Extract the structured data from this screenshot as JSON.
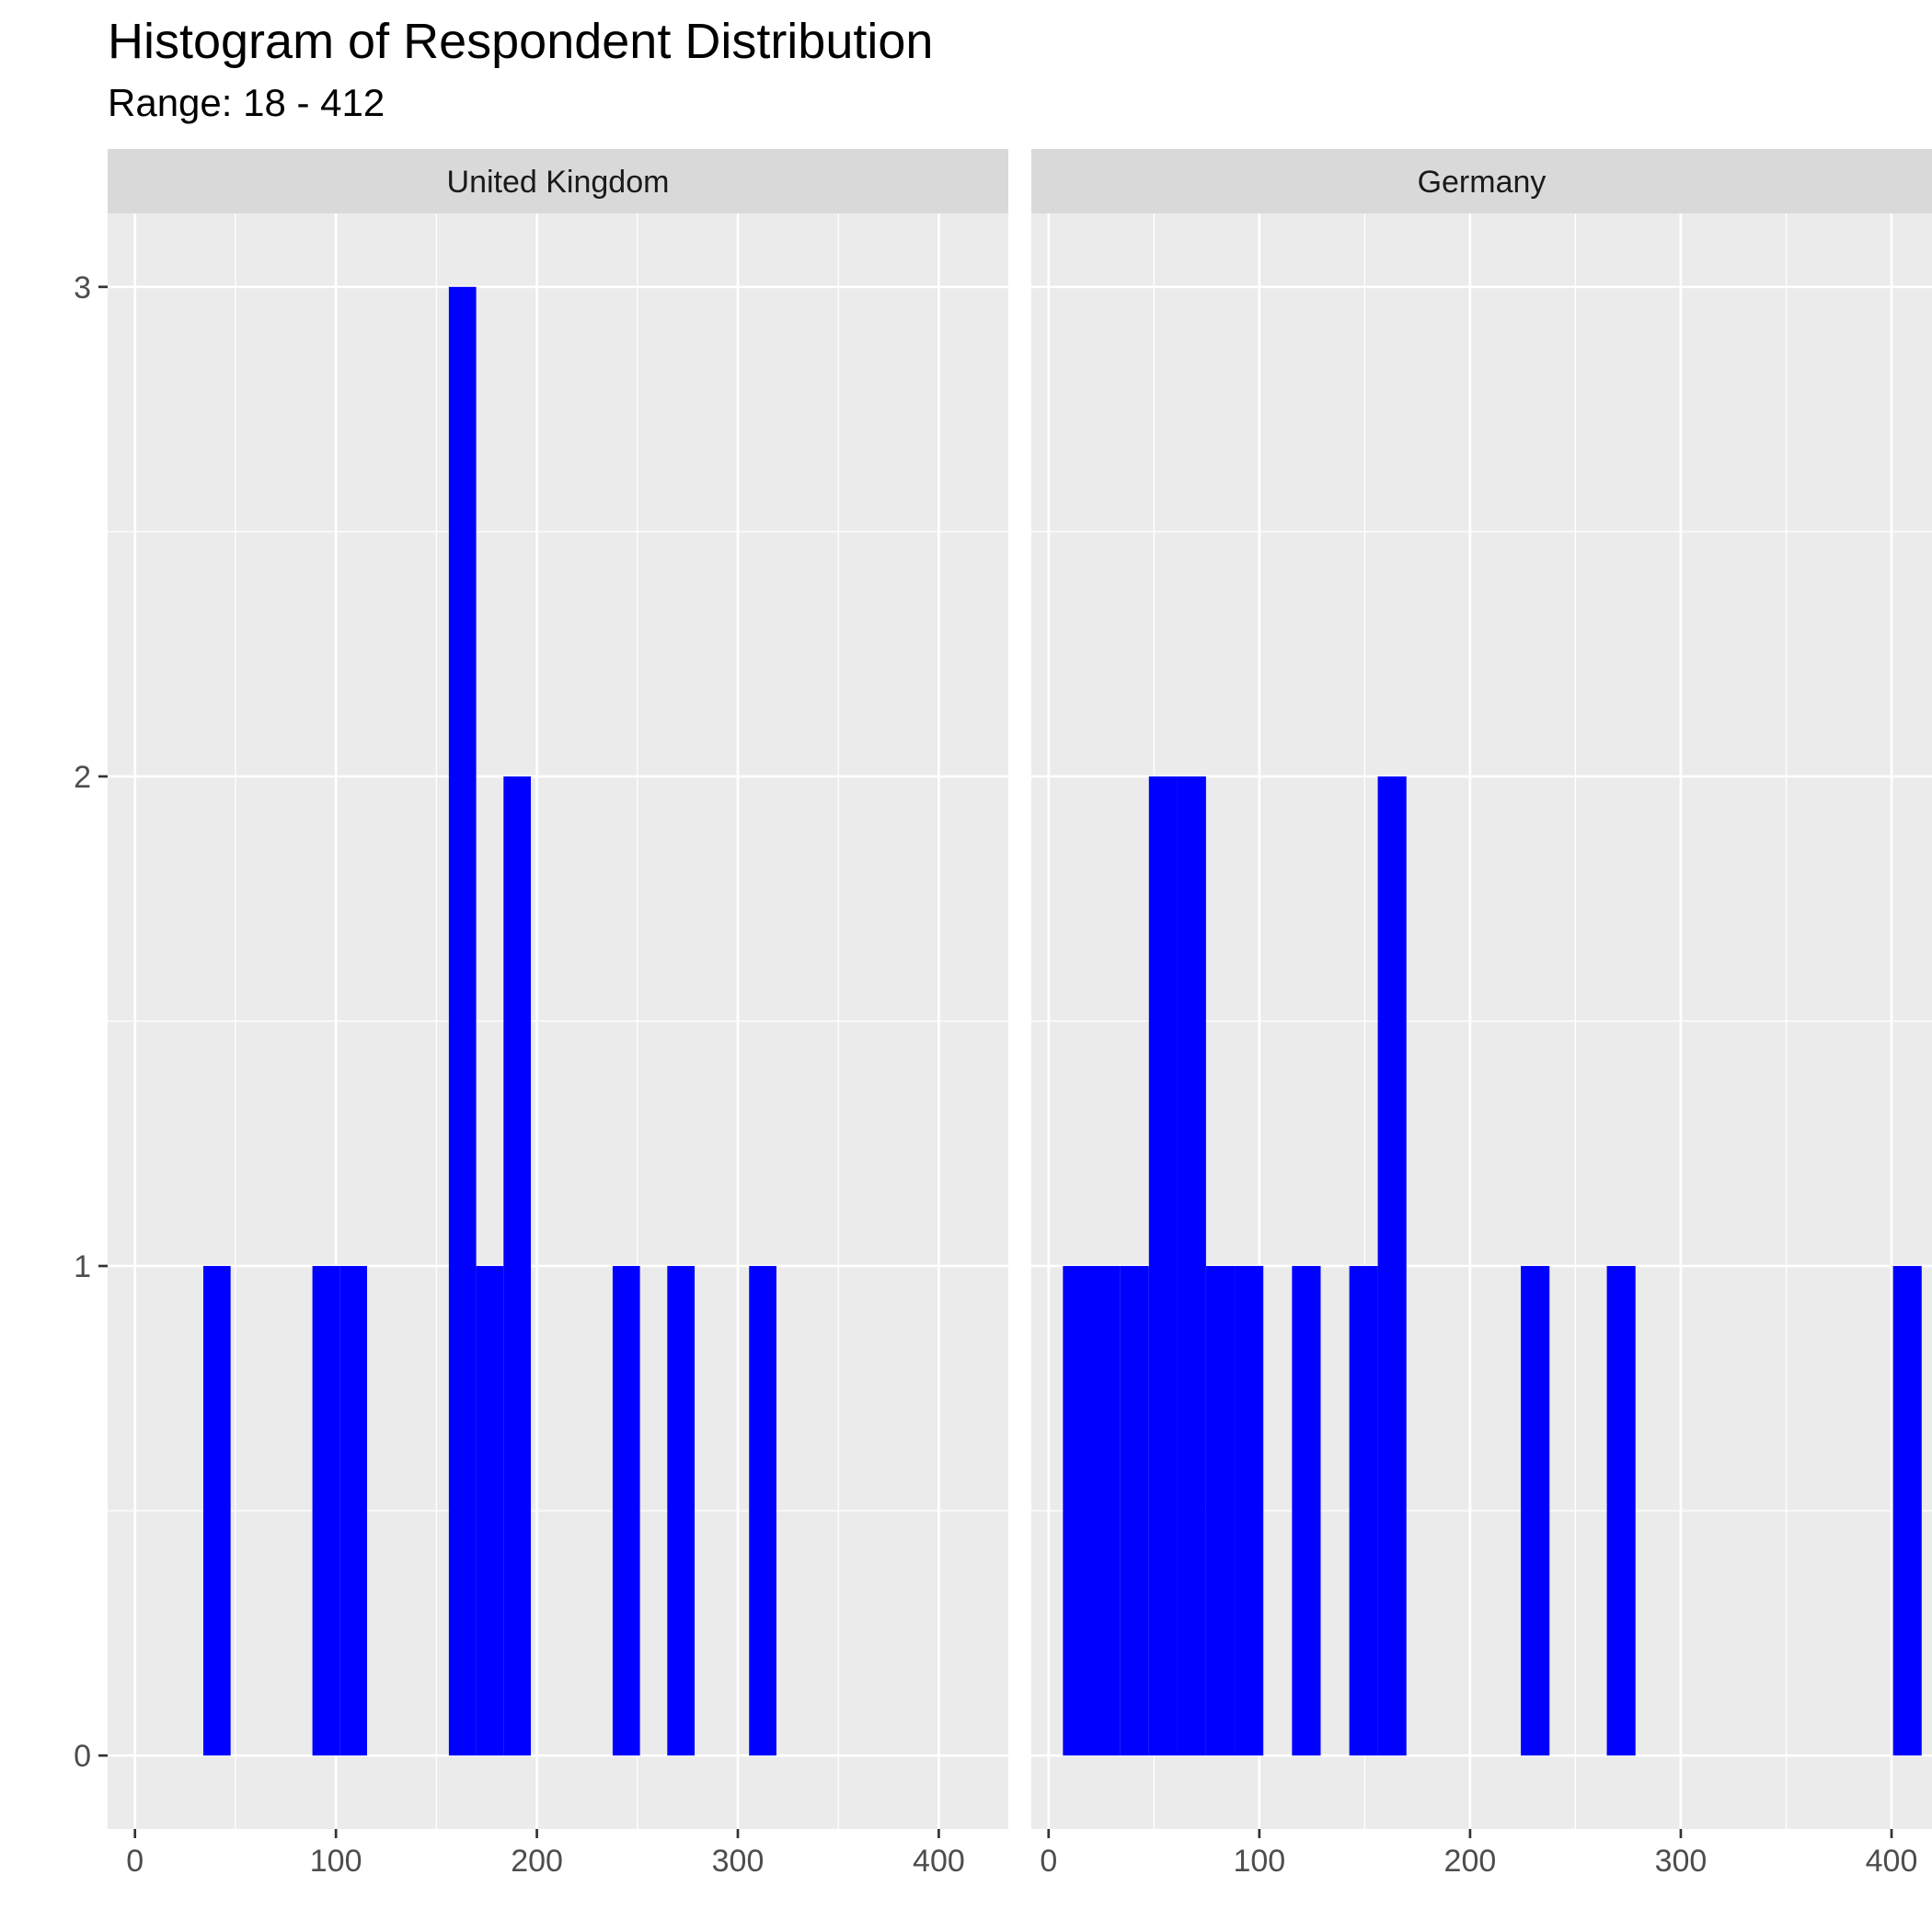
{
  "chart_data": {
    "type": "bar",
    "title": "Histogram of Respondent Distribution",
    "subtitle": "Range: 18 - 412",
    "xlabel": "",
    "ylabel": "",
    "binwidth": 13.58,
    "ylim": [
      -0.15,
      3.15
    ],
    "y_ticks": [
      0,
      1,
      2,
      3
    ],
    "x_ticks": [
      0,
      100,
      200,
      300,
      400
    ],
    "grid": true,
    "legend": "none",
    "panels": [
      {
        "name": "United Kingdom",
        "xlim": [
          -13.6,
          434.6
        ],
        "bins": [
          {
            "x0": 34.0,
            "x1": 47.6,
            "count": 1
          },
          {
            "x0": 88.3,
            "x1": 101.9,
            "count": 1
          },
          {
            "x0": 101.9,
            "x1": 115.5,
            "count": 1
          },
          {
            "x0": 156.2,
            "x1": 169.8,
            "count": 3
          },
          {
            "x0": 169.8,
            "x1": 183.4,
            "count": 1
          },
          {
            "x0": 183.4,
            "x1": 197.0,
            "count": 2
          },
          {
            "x0": 237.7,
            "x1": 251.3,
            "count": 1
          },
          {
            "x0": 264.9,
            "x1": 278.5,
            "count": 1
          },
          {
            "x0": 305.6,
            "x1": 319.2,
            "count": 1
          }
        ]
      },
      {
        "name": "Germany",
        "xlim": [
          -8.2,
          419.2
        ],
        "bins": [
          {
            "x0": 6.8,
            "x1": 20.4,
            "count": 1
          },
          {
            "x0": 20.4,
            "x1": 34.0,
            "count": 1
          },
          {
            "x0": 34.0,
            "x1": 47.6,
            "count": 1
          },
          {
            "x0": 47.6,
            "x1": 61.2,
            "count": 2
          },
          {
            "x0": 61.2,
            "x1": 74.7,
            "count": 2
          },
          {
            "x0": 74.7,
            "x1": 88.3,
            "count": 1
          },
          {
            "x0": 88.3,
            "x1": 101.9,
            "count": 1
          },
          {
            "x0": 115.5,
            "x1": 129.1,
            "count": 1
          },
          {
            "x0": 142.7,
            "x1": 156.2,
            "count": 1
          },
          {
            "x0": 156.2,
            "x1": 169.8,
            "count": 2
          },
          {
            "x0": 224.1,
            "x1": 237.7,
            "count": 1
          },
          {
            "x0": 264.9,
            "x1": 278.5,
            "count": 1
          },
          {
            "x0": 400.7,
            "x1": 414.3,
            "count": 1
          }
        ]
      }
    ],
    "colors": {
      "bar_fill": "#0000ff",
      "panel_background": "#ebebeb",
      "grid_major": "#ffffff",
      "strip_background": "#d9d9d9",
      "tick_text": "#4d4d4d",
      "axis_tick": "#333333"
    }
  }
}
